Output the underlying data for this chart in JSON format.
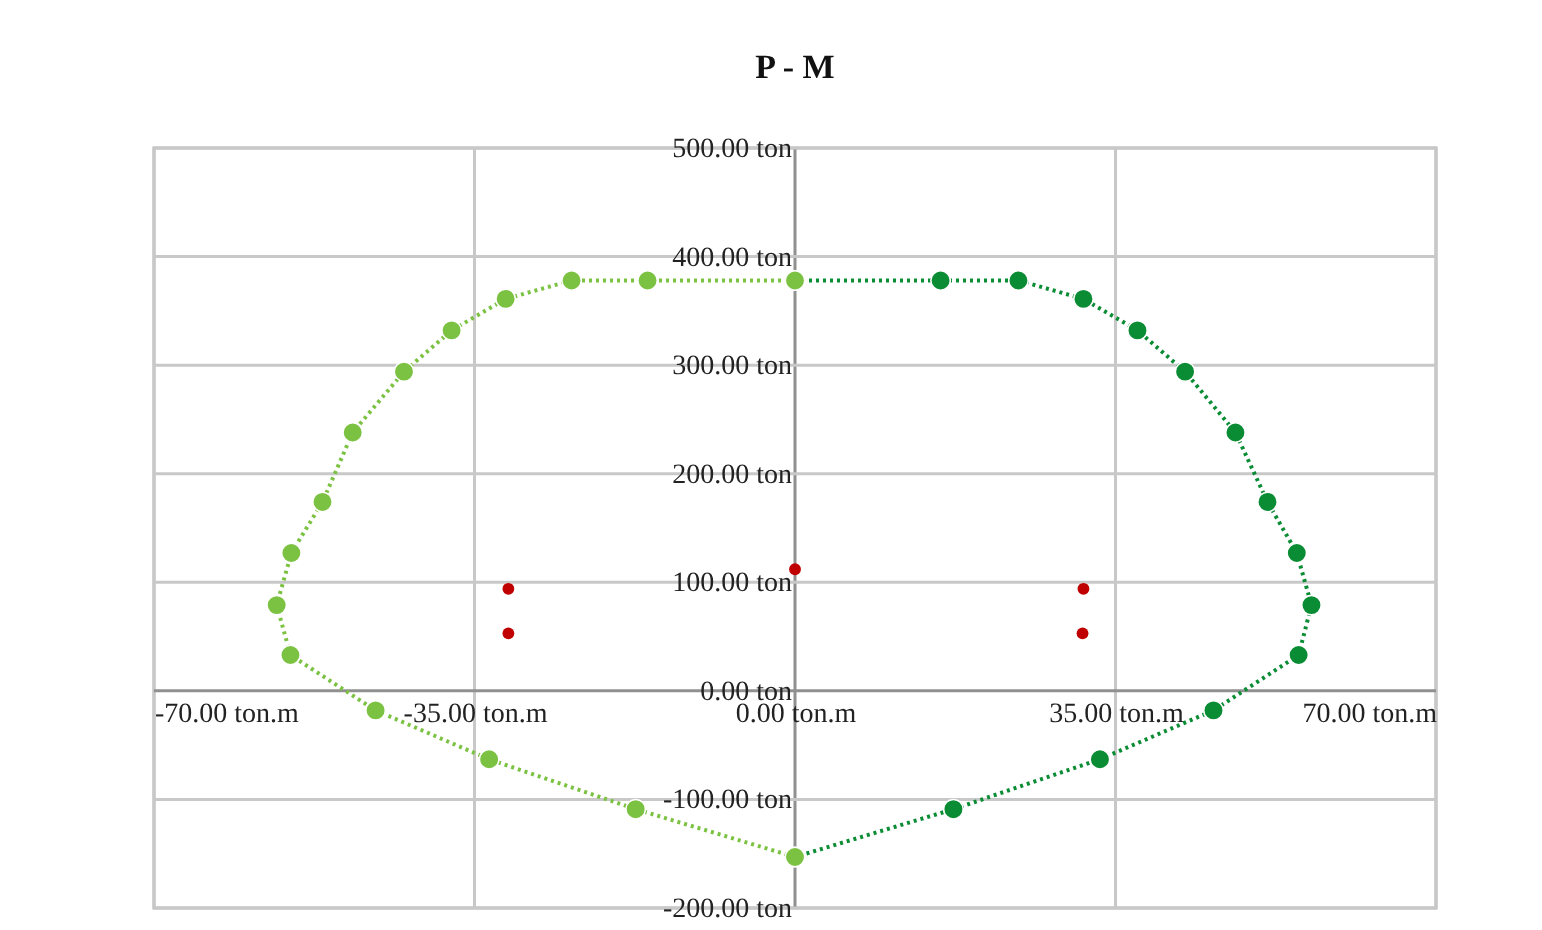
{
  "chart_data": {
    "type": "scatter",
    "title": "P - M",
    "xlim": [
      -70,
      70
    ],
    "ylim": [
      -200,
      500
    ],
    "xticks": [
      {
        "value": -70,
        "label": "-70.00 ton.m"
      },
      {
        "value": -35,
        "label": "-35.00 ton.m"
      },
      {
        "value": 0,
        "label": "0.00 ton.m"
      },
      {
        "value": 35,
        "label": "35.00 ton.m"
      },
      {
        "value": 70,
        "label": "70.00 ton.m"
      }
    ],
    "yticks": [
      {
        "value": -200,
        "label": "-200.00 ton"
      },
      {
        "value": -100,
        "label": "-100.00 ton"
      },
      {
        "value": 0,
        "label": "0.00 ton"
      },
      {
        "value": 100,
        "label": "100.00 ton"
      },
      {
        "value": 200,
        "label": "200.00 ton"
      },
      {
        "value": 300,
        "label": "300.00 ton"
      },
      {
        "value": 400,
        "label": "400.00 ton"
      },
      {
        "value": 500,
        "label": "500.00 ton"
      }
    ],
    "grid": true,
    "marker": "circle",
    "series": [
      {
        "type": "line",
        "line_style": "dotted",
        "color": "#0a8c34",
        "x": [
          0,
          15.9,
          24.4,
          31.5,
          37.4,
          42.6,
          48.1,
          51.6,
          54.8,
          56.4,
          55.0,
          45.7,
          33.3,
          17.3,
          0
        ],
        "values": [
          378,
          378,
          378,
          361,
          332,
          294,
          238,
          174,
          127,
          79,
          33,
          -18,
          -63,
          -109,
          -153
        ]
      },
      {
        "type": "line",
        "line_style": "dotted",
        "color": "#7cc242",
        "x": [
          0,
          -16.1,
          -24.4,
          -31.6,
          -37.5,
          -42.7,
          -48.3,
          -51.6,
          -55.0,
          -56.6,
          -55.1,
          -45.8,
          -33.4,
          -17.4,
          0
        ],
        "values": [
          378,
          378,
          378,
          361,
          332,
          294,
          238,
          174,
          127,
          79,
          33,
          -18,
          -63,
          -109,
          -153
        ]
      },
      {
        "color": "#c00000",
        "x": [
          -31.3,
          -31.3,
          0,
          31.5,
          31.4
        ],
        "values": [
          94,
          53,
          112,
          94,
          53
        ]
      }
    ]
  }
}
